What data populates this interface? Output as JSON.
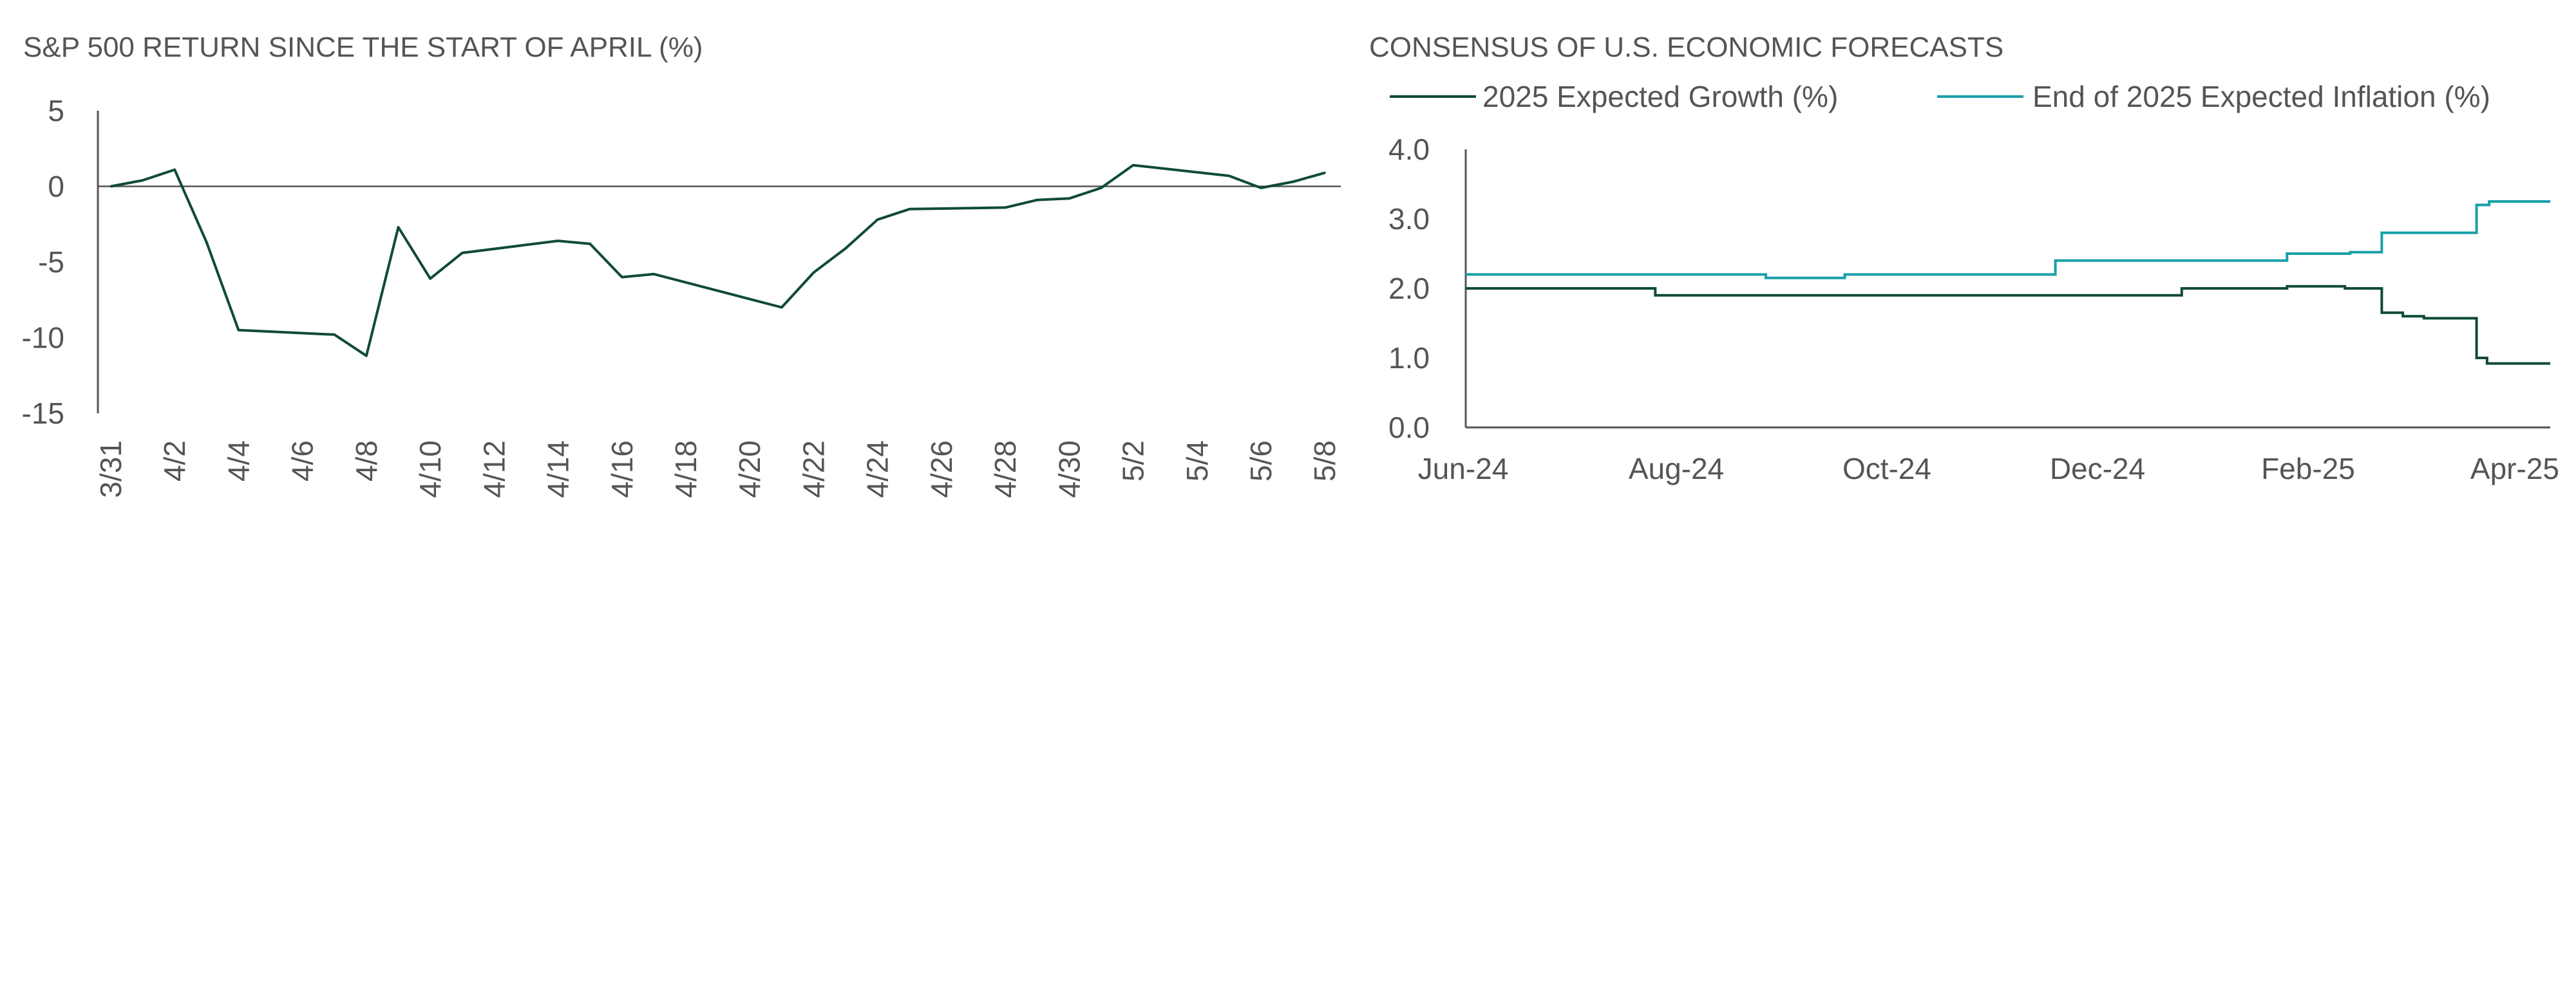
{
  "colors": {
    "dark_green": "#0f4a3a",
    "teal": "#18a0a8",
    "text": "#555555",
    "axis": "#555555"
  },
  "chart_data": [
    {
      "type": "line",
      "title": "S&P 500 RETURN SINCE THE START OF APRIL (%)",
      "xlabel": "",
      "ylabel": "",
      "ylim": [
        -15,
        5
      ],
      "y_ticks": [
        5,
        0,
        -5,
        -10,
        -15
      ],
      "x_tick_labels": [
        "3/31",
        "4/2",
        "4/4",
        "4/6",
        "4/8",
        "4/10",
        "4/12",
        "4/14",
        "4/16",
        "4/18",
        "4/20",
        "4/22",
        "4/24",
        "4/26",
        "4/28",
        "4/30",
        "5/2",
        "5/4",
        "5/6",
        "5/8"
      ],
      "x_tick_days": [
        0,
        2,
        4,
        6,
        8,
        10,
        12,
        14,
        16,
        18,
        20,
        22,
        24,
        26,
        28,
        30,
        32,
        34,
        36,
        38
      ],
      "xlim": [
        0,
        38.5
      ],
      "series": [
        {
          "name": "S&P 500 Return (%)",
          "color_key": "dark_green",
          "points": [
            [
              0,
              0
            ],
            [
              1,
              0.4
            ],
            [
              2,
              1.1
            ],
            [
              3,
              -3.7
            ],
            [
              4,
              -9.5
            ],
            [
              7,
              -9.8
            ],
            [
              8,
              -11.2
            ],
            [
              9,
              -2.7
            ],
            [
              10,
              -6.1
            ],
            [
              11,
              -4.4
            ],
            [
              14,
              -3.6
            ],
            [
              15,
              -3.8
            ],
            [
              16,
              -6.0
            ],
            [
              17,
              -5.8
            ],
            [
              21,
              -8.0
            ],
            [
              22,
              -5.7
            ],
            [
              23,
              -4.1
            ],
            [
              24,
              -2.2
            ],
            [
              25,
              -1.5
            ],
            [
              28,
              -1.4
            ],
            [
              29,
              -0.9
            ],
            [
              30,
              -0.8
            ],
            [
              31,
              -0.1
            ],
            [
              32,
              1.4
            ],
            [
              35,
              0.7
            ],
            [
              36,
              -0.1
            ],
            [
              37,
              0.3
            ],
            [
              38,
              0.9
            ]
          ]
        }
      ]
    },
    {
      "type": "line",
      "title": "CONSENSUS OF U.S. ECONOMIC FORECASTS",
      "xlabel": "",
      "ylabel": "",
      "ylim": [
        0.0,
        4.0
      ],
      "y_tick_labels": [
        "4.0",
        "3.0",
        "2.0",
        "1.0",
        "0.0"
      ],
      "y_tick_values": [
        4.0,
        3.0,
        2.0,
        1.0,
        0.0
      ],
      "x_tick_labels": [
        "Jun-24",
        "Aug-24",
        "Oct-24",
        "Dec-24",
        "Feb-25",
        "Apr-25"
      ],
      "x_tick_months": [
        0,
        2,
        4,
        6,
        8,
        10
      ],
      "xlim": [
        0,
        10.3
      ],
      "legend": [
        "2025 Expected Growth (%)",
        "End of 2025 Expected Inflation (%)"
      ],
      "series": [
        {
          "name": "2025 Expected Growth (%)",
          "color_key": "dark_green",
          "step_points": [
            [
              0,
              2.0
            ],
            [
              1.8,
              1.9
            ],
            [
              6.8,
              2.0
            ],
            [
              7.8,
              2.03
            ],
            [
              8.35,
              2.0
            ],
            [
              8.7,
              1.65
            ],
            [
              8.9,
              1.6
            ],
            [
              9.1,
              1.57
            ],
            [
              9.6,
              1.0
            ],
            [
              9.7,
              0.92
            ],
            [
              10.3,
              0.92
            ]
          ]
        },
        {
          "name": "End of 2025 Expected Inflation (%)",
          "color_key": "teal",
          "step_points": [
            [
              0,
              2.2
            ],
            [
              2.85,
              2.15
            ],
            [
              3.6,
              2.2
            ],
            [
              5.6,
              2.4
            ],
            [
              7.8,
              2.5
            ],
            [
              8.4,
              2.52
            ],
            [
              8.7,
              2.8
            ],
            [
              9.6,
              3.2
            ],
            [
              9.72,
              3.25
            ],
            [
              10.3,
              3.25
            ]
          ]
        }
      ]
    }
  ]
}
